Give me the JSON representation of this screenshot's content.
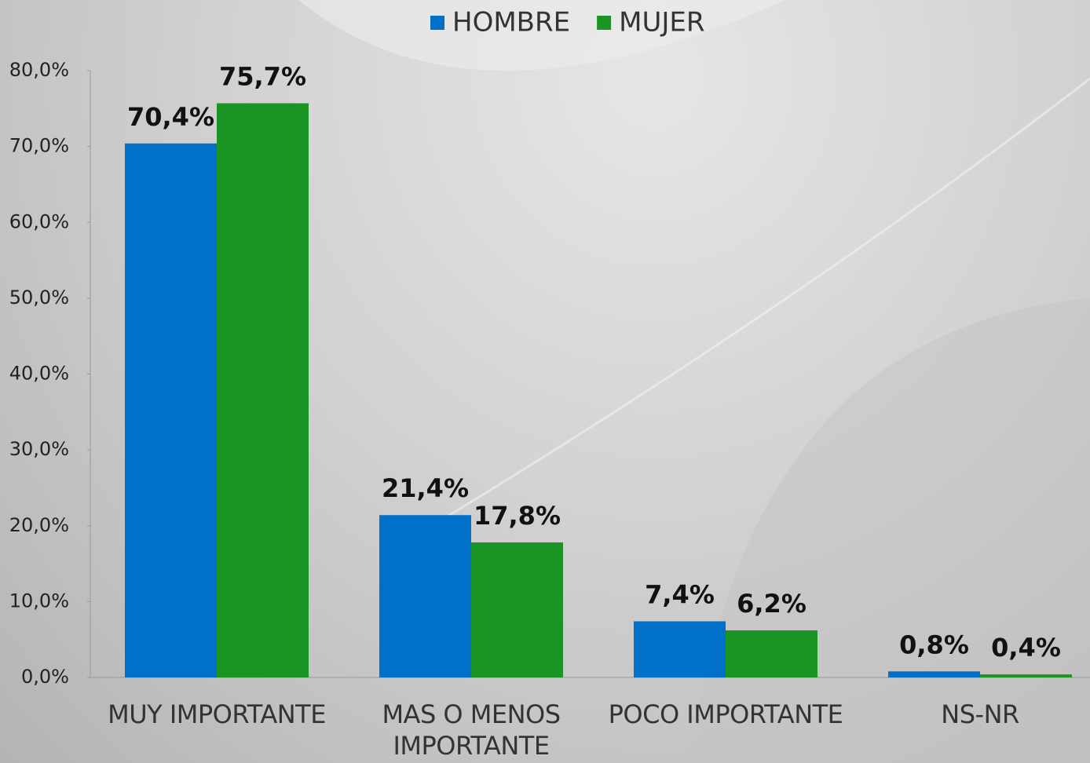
{
  "chart_data": {
    "type": "bar",
    "categories": [
      "MUY IMPORTANTE",
      "MAS O MENOS IMPORTANTE",
      "POCO IMPORTANTE",
      "NS-NR"
    ],
    "series": [
      {
        "name": "HOMBRE",
        "color": "#0070c8",
        "values": [
          70.4,
          21.4,
          7.4,
          0.8
        ],
        "value_labels": [
          "70,4%",
          "21,4%",
          "7,4%",
          "0,8%"
        ]
      },
      {
        "name": "MUJER",
        "color": "#1a9423",
        "values": [
          75.7,
          17.8,
          6.2,
          0.4
        ],
        "value_labels": [
          "75,7%",
          "17,8%",
          "6,2%",
          "0,4%"
        ]
      }
    ],
    "ylim": [
      0,
      80
    ],
    "yticks": [
      {
        "value": 0,
        "label": "0,0%"
      },
      {
        "value": 10,
        "label": "10,0%"
      },
      {
        "value": 20,
        "label": "20,0%"
      },
      {
        "value": 30,
        "label": "30,0%"
      },
      {
        "value": 40,
        "label": "40,0%"
      },
      {
        "value": 50,
        "label": "50,0%"
      },
      {
        "value": 60,
        "label": "60,0%"
      },
      {
        "value": 70,
        "label": "70,0%"
      },
      {
        "value": 80,
        "label": "80,0%"
      }
    ],
    "grid": false,
    "legend": "top"
  }
}
